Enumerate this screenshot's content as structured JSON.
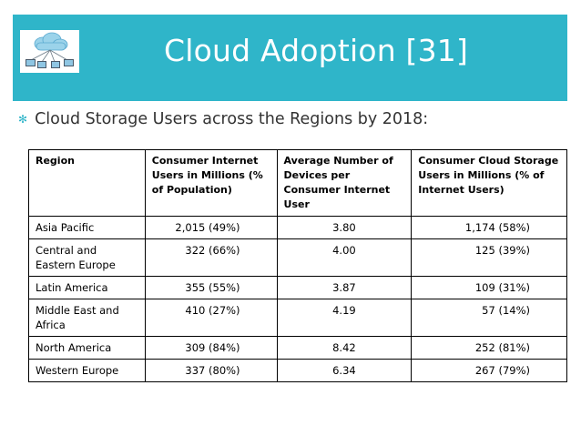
{
  "slide": {
    "title": "Cloud Adoption [31]",
    "bullet": "Cloud Storage Users across the Regions by 2018:"
  },
  "icons": {
    "logo": "cloud-network-logo-icon",
    "bullet": "bullet-icon"
  },
  "colors": {
    "header_bg": "#2fb5c9",
    "accent": "#2fb5c9"
  },
  "table": {
    "headers": [
      "Region",
      "Consumer Internet Users in Millions (% of Population)",
      "Average Number of Devices per Consumer Internet User",
      "Consumer Cloud Storage Users in Millions (% of Internet Users)"
    ],
    "rows": [
      [
        "Asia Pacific",
        "2,015 (49%)",
        "3.80",
        "1,174 (58%)"
      ],
      [
        "Central and Eastern Europe",
        "322 (66%)",
        "4.00",
        "125 (39%)"
      ],
      [
        "Latin America",
        "355 (55%)",
        "3.87",
        "109 (31%)"
      ],
      [
        "Middle East and Africa",
        "410 (27%)",
        "4.19",
        "57 (14%)"
      ],
      [
        "North America",
        "309 (84%)",
        "8.42",
        "252 (81%)"
      ],
      [
        "Western Europe",
        "337 (80%)",
        "6.34",
        "267 (79%)"
      ]
    ]
  }
}
